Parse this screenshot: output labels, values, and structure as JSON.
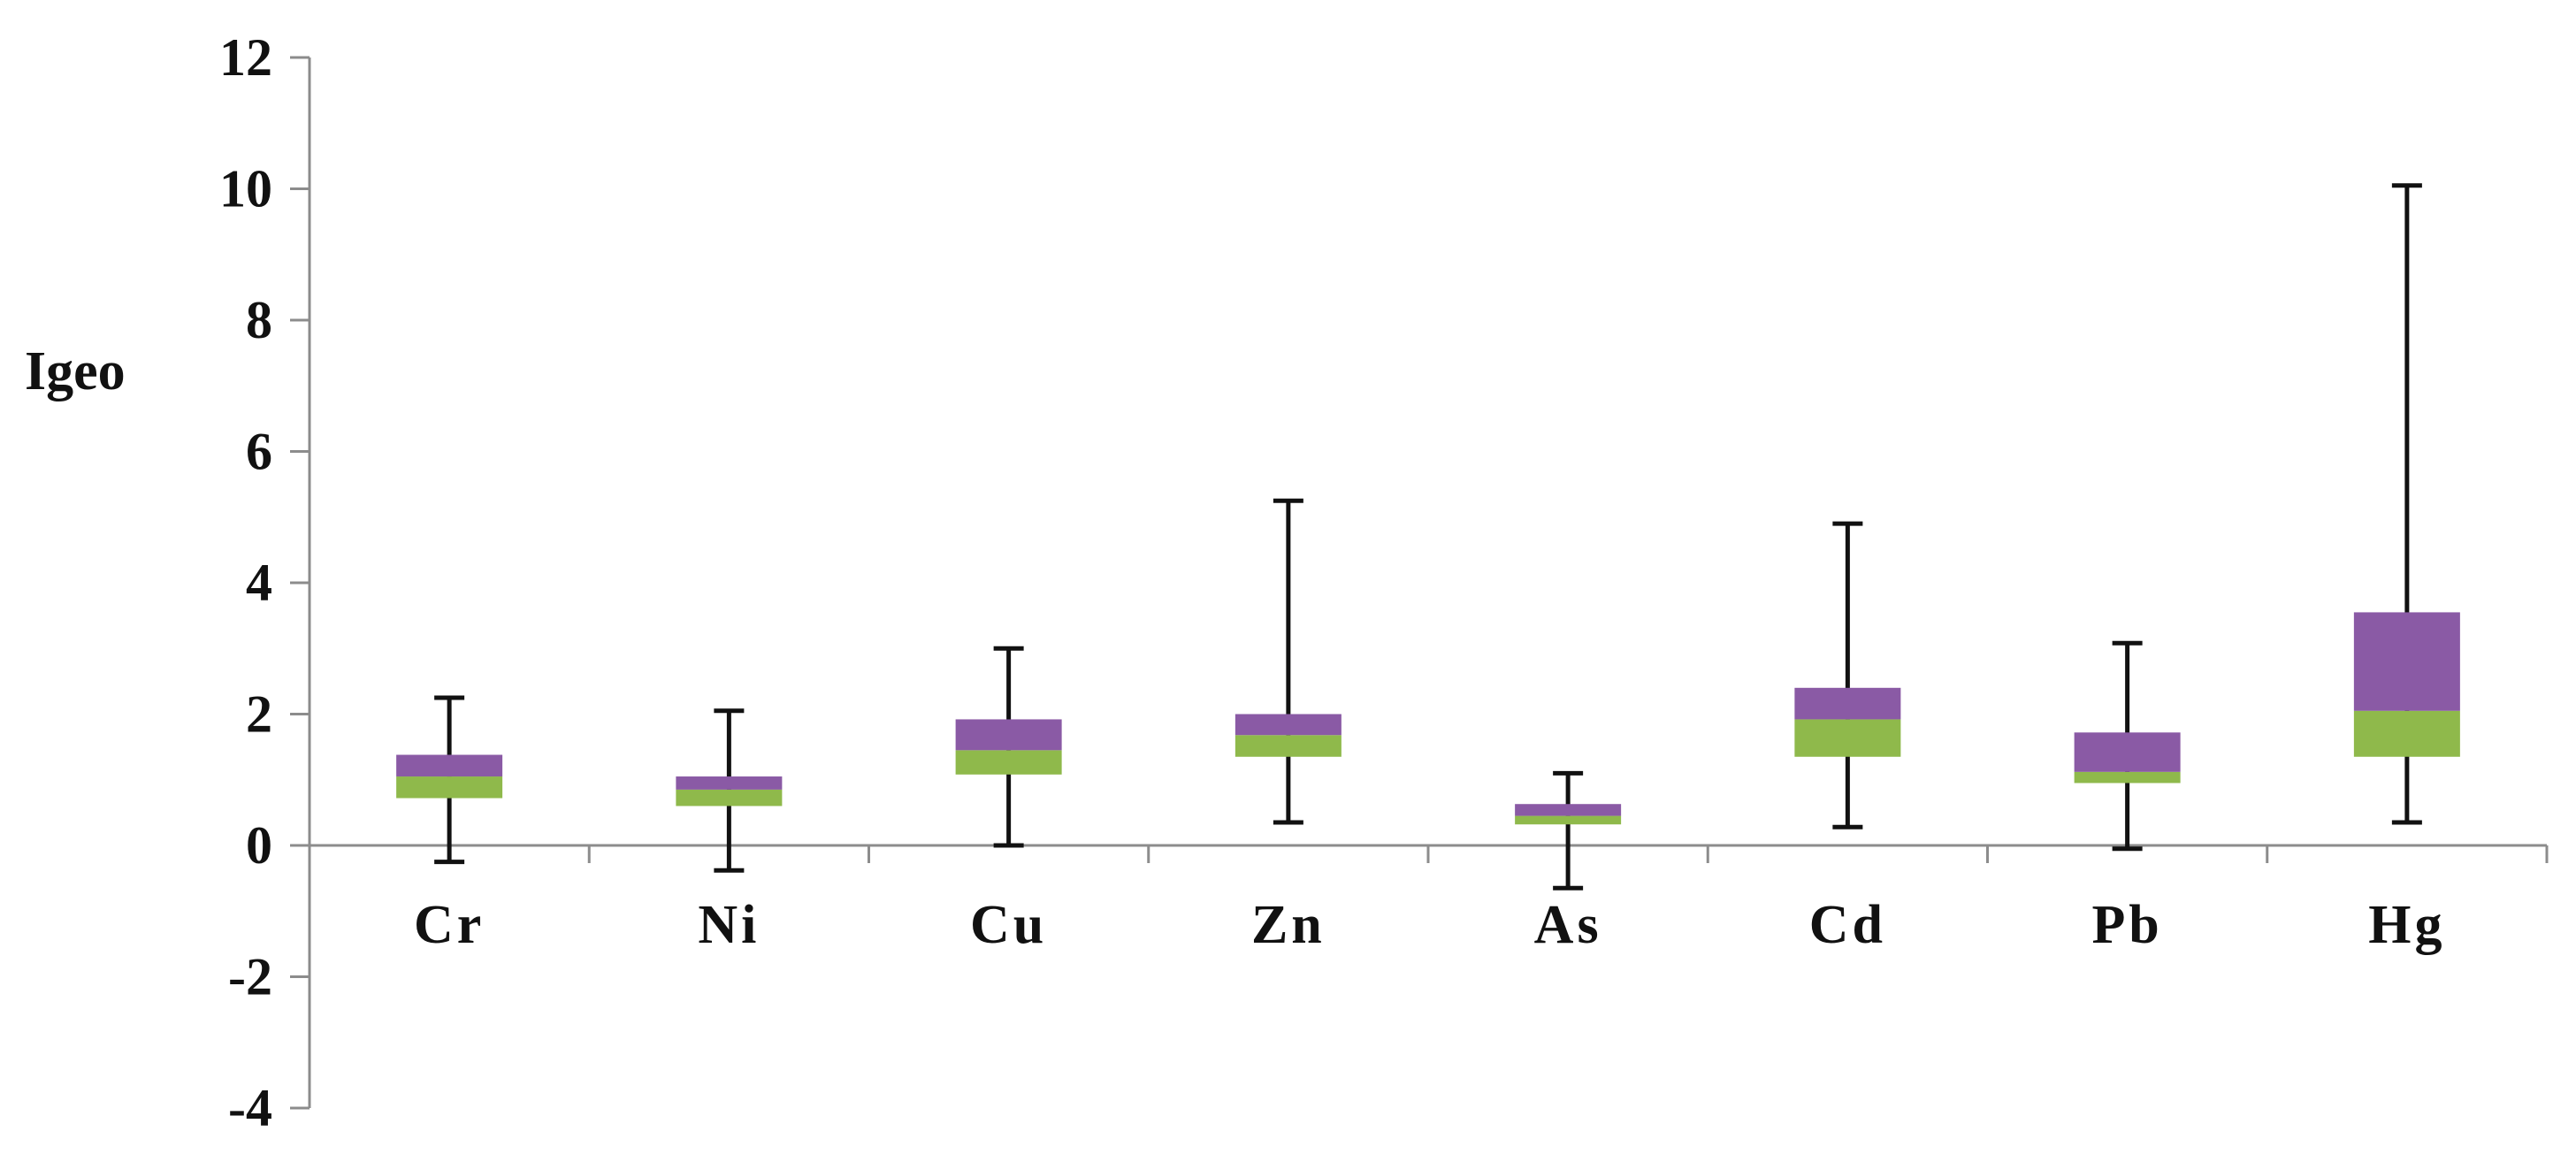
{
  "chart_data": {
    "type": "box",
    "ylabel": "Igeo",
    "xlabel": "",
    "ylim": [
      -4,
      12
    ],
    "yticks": [
      -4,
      -2,
      0,
      2,
      4,
      6,
      8,
      10,
      12
    ],
    "grid": false,
    "legend": "none",
    "categories": [
      "Cr",
      "Ni",
      "Cu",
      "Zn",
      "As",
      "Cd",
      "Pb",
      "Hg"
    ],
    "series": [
      {
        "category": "Cr",
        "min": -0.25,
        "q1": 0.72,
        "median": 1.05,
        "q3": 1.38,
        "max": 2.25
      },
      {
        "category": "Ni",
        "min": -0.38,
        "q1": 0.6,
        "median": 0.85,
        "q3": 1.05,
        "max": 2.05
      },
      {
        "category": "Cu",
        "min": 0.0,
        "q1": 1.08,
        "median": 1.45,
        "q3": 1.92,
        "max": 3.0
      },
      {
        "category": "Zn",
        "min": 0.35,
        "q1": 1.35,
        "median": 1.68,
        "q3": 2.0,
        "max": 5.25
      },
      {
        "category": "As",
        "min": -0.65,
        "q1": 0.32,
        "median": 0.45,
        "q3": 0.63,
        "max": 1.1
      },
      {
        "category": "Cd",
        "min": 0.28,
        "q1": 1.35,
        "median": 1.92,
        "q3": 2.4,
        "max": 4.9
      },
      {
        "category": "Pb",
        "min": -0.05,
        "q1": 0.95,
        "median": 1.12,
        "q3": 1.72,
        "max": 3.08
      },
      {
        "category": "Hg",
        "min": 0.35,
        "q1": 1.35,
        "median": 2.05,
        "q3": 3.55,
        "max": 10.05
      }
    ],
    "colors": {
      "lower_box": "#8FB94B",
      "upper_box": "#8A5AA5",
      "whisker": "#111111",
      "axis": "#8c8c8c"
    }
  }
}
